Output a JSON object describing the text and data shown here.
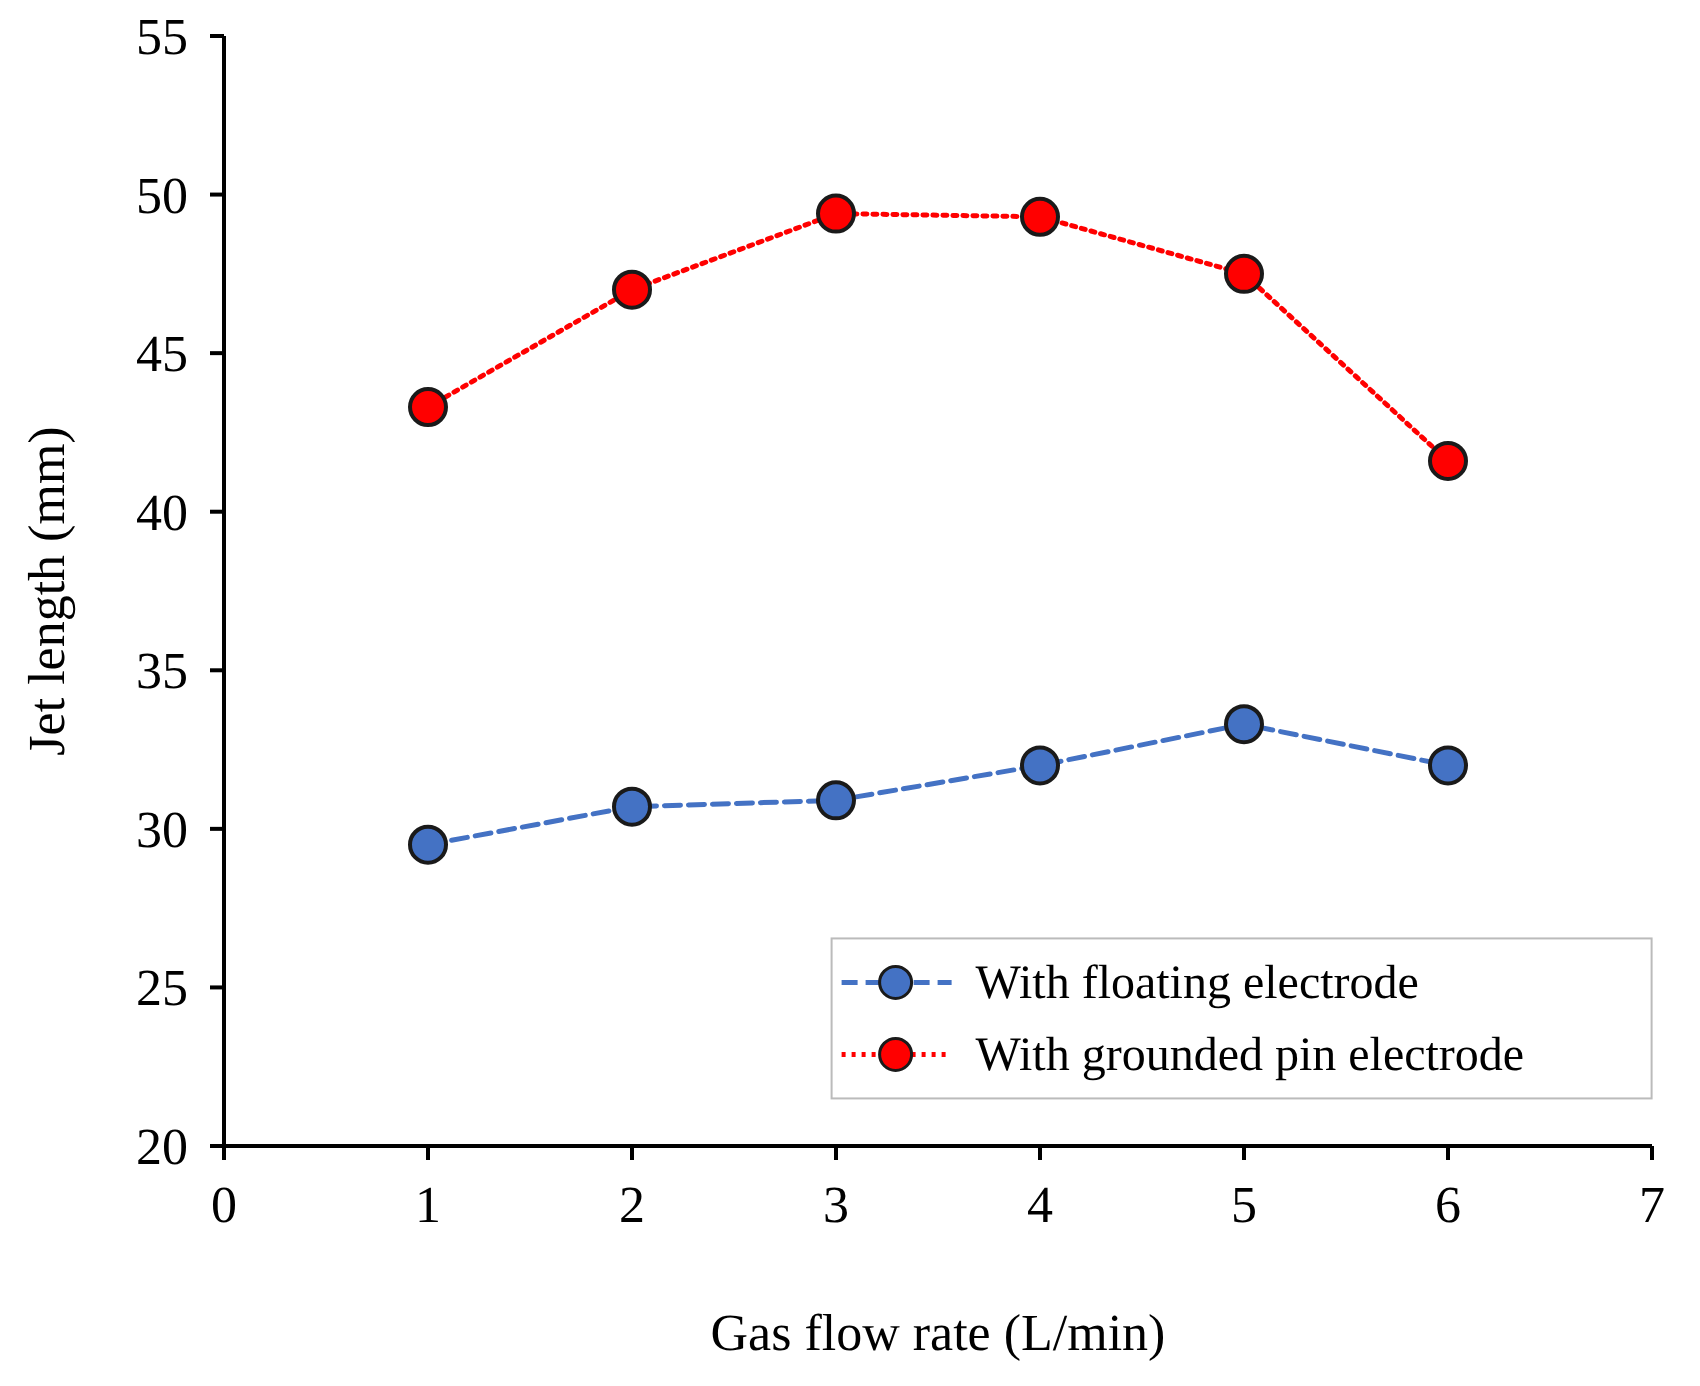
{
  "chart_data": {
    "type": "line",
    "xlabel": "Gas flow rate (L/min)",
    "ylabel": "Jet length (mm)",
    "x": [
      1,
      2,
      3,
      4,
      5,
      6
    ],
    "series": [
      {
        "name": "With floating electrode",
        "color": "#4472c4",
        "line_style": "dashed",
        "values": [
          29.5,
          30.7,
          30.9,
          32.0,
          33.3,
          32.0
        ]
      },
      {
        "name": "With grounded pin electrode",
        "color": "#ff0000",
        "line_style": "dotted",
        "values": [
          43.3,
          47.0,
          49.4,
          49.3,
          47.5,
          41.6
        ]
      }
    ],
    "xlim": [
      0,
      7
    ],
    "xticks": [
      0,
      1,
      2,
      3,
      4,
      5,
      6,
      7
    ],
    "ylim": [
      20,
      55
    ],
    "yticks": [
      20,
      25,
      30,
      35,
      40,
      45,
      50,
      55
    ],
    "marker": "circle",
    "legend": "bottom right",
    "grid": false
  }
}
